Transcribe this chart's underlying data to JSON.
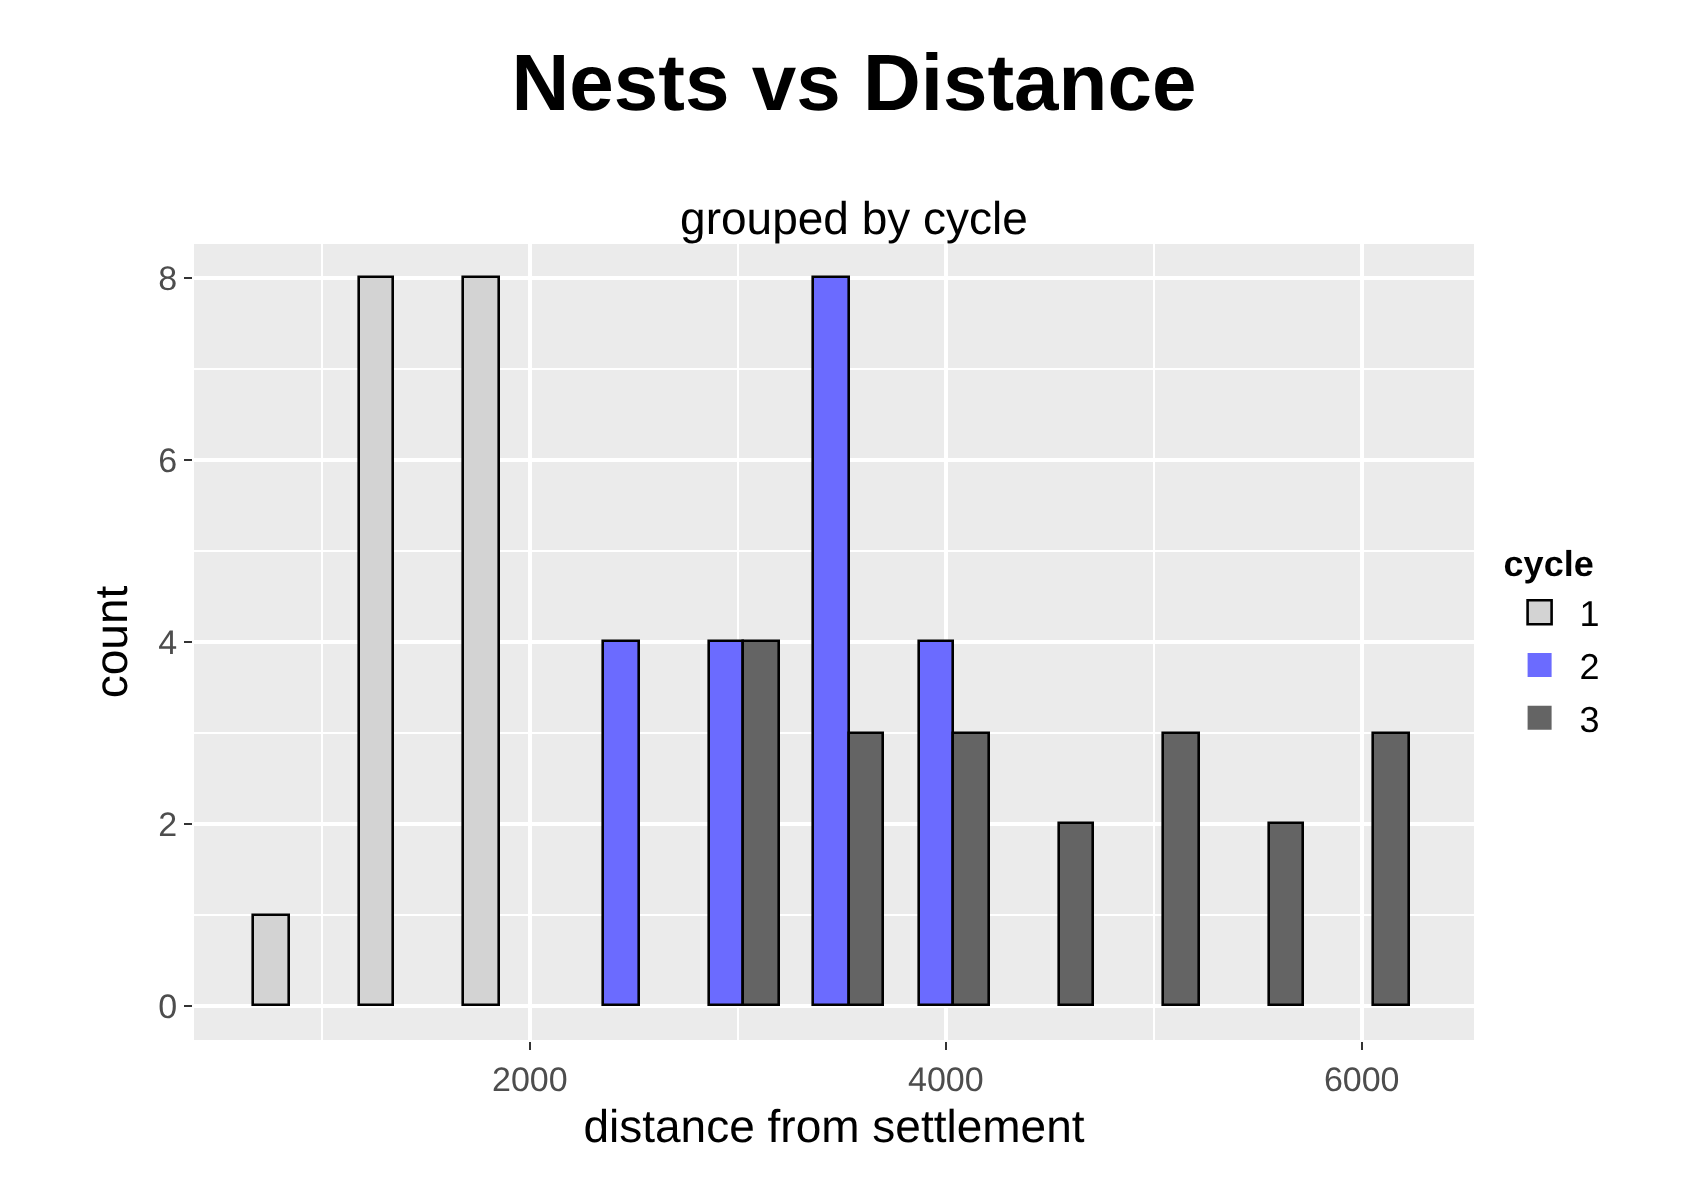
{
  "chart_data": {
    "type": "histogram",
    "title": "Nests vs Distance",
    "subtitle": "grouped by cycle",
    "xlabel": "distance from settlement",
    "ylabel": "count",
    "legend_title": "cycle",
    "bins": [
      675,
      1180,
      1685,
      2190,
      2695,
      3200,
      3705,
      4210,
      4715,
      5220,
      5725,
      6230
    ],
    "series": [
      {
        "name": "1",
        "color": "#d3d3d3",
        "values": [
          1,
          8,
          8,
          0,
          0,
          0,
          0,
          0,
          0,
          0,
          0
        ]
      },
      {
        "name": "2",
        "color": "#6b6bff",
        "values": [
          0,
          0,
          0,
          4,
          4,
          8,
          4,
          0,
          0,
          0,
          0
        ]
      },
      {
        "name": "3",
        "color": "#646464",
        "values": [
          0,
          0,
          0,
          0,
          4,
          3,
          3,
          2,
          3,
          2,
          3
        ]
      }
    ],
    "xlim": [
      385,
      6540
    ],
    "xticks": [
      2000,
      4000,
      6000
    ],
    "ylim": [
      -0.37,
      8.37
    ],
    "yticks": [
      0,
      2,
      4,
      6,
      8
    ],
    "grid": true,
    "legend": "right"
  }
}
